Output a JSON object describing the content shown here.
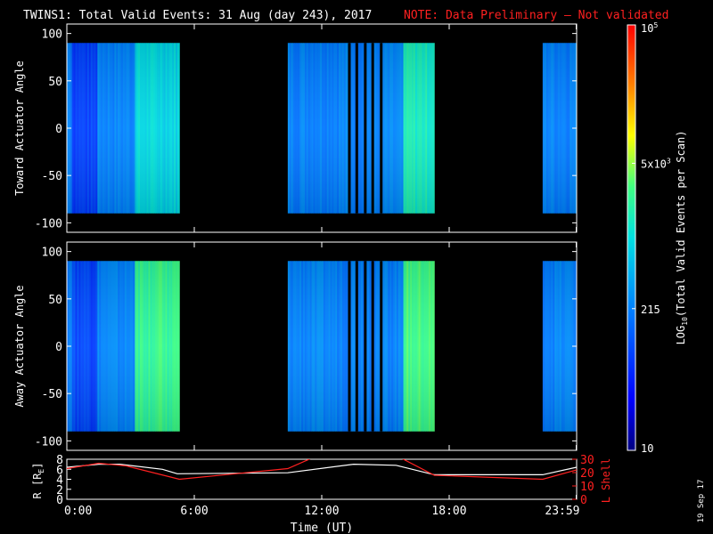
{
  "header": {
    "title": "TWINS1: Total Valid Events: 31 Aug (day 243), 2017",
    "note": "NOTE: Data Preliminary — Not validated"
  },
  "side_date": "19 Sep 17",
  "colors": {
    "note": "#ff2020",
    "line_r": "#ffffff",
    "line_l": "#ff2020"
  },
  "chart_data": [
    {
      "type": "heatmap",
      "ylabel": "Toward Actuator Angle",
      "ylim": [
        -110,
        110
      ],
      "yticks": [
        100,
        50,
        0,
        -50,
        -100
      ],
      "xlim": [
        0,
        24
      ],
      "y_range_data": [
        -90,
        90
      ],
      "data_blocks_hours": [
        [
          0.0,
          5.3
        ],
        [
          10.4,
          17.3
        ],
        [
          22.4,
          24.0
        ]
      ],
      "gap_lines_hours": [
        13.3,
        13.65,
        14.05,
        14.4,
        14.8
      ],
      "base_level": 215,
      "warm_levels": [
        {
          "from": 0.2,
          "to": 1.4,
          "level": 80
        },
        {
          "from": 3.2,
          "to": 5.3,
          "level": 900
        },
        {
          "from": 15.8,
          "to": 17.3,
          "level": 1500
        }
      ]
    },
    {
      "type": "heatmap",
      "ylabel": "Away Actuator Angle",
      "ylim": [
        -110,
        110
      ],
      "yticks": [
        100,
        50,
        0,
        -50,
        -100
      ],
      "xlim": [
        0,
        24
      ],
      "y_range_data": [
        -90,
        90
      ],
      "data_blocks_hours": [
        [
          0.0,
          5.3
        ],
        [
          10.4,
          17.3
        ],
        [
          22.4,
          24.0
        ]
      ],
      "gap_lines_hours": [
        13.3,
        13.65,
        14.05,
        14.4,
        14.8
      ],
      "base_level": 215,
      "warm_levels": [
        {
          "from": 0.2,
          "to": 1.4,
          "level": 90
        },
        {
          "from": 3.2,
          "to": 5.3,
          "level": 2500
        },
        {
          "from": 15.8,
          "to": 17.3,
          "level": 2800
        }
      ]
    },
    {
      "type": "line",
      "ylabel_left": "R [R",
      "ylabel_left_sub": "E",
      "ylabel_left_close": "]",
      "ylabel_right": "L Shell",
      "xlabel": "Time (UT)",
      "xlim": [
        0,
        24
      ],
      "x_ticks": [
        {
          "h": 0,
          "label": "0:00"
        },
        {
          "h": 6,
          "label": "6:00"
        },
        {
          "h": 12,
          "label": "12:00"
        },
        {
          "h": 18,
          "label": "18:00"
        },
        {
          "h": 23.98,
          "label": "23:59"
        }
      ],
      "ylim_left": [
        0,
        8
      ],
      "yticks_left": [
        8,
        6,
        4,
        2,
        0
      ],
      "ylim_right": [
        0,
        30
      ],
      "yticks_right": [
        30,
        20,
        10,
        0
      ],
      "series": [
        {
          "axis": "left",
          "x": [
            0,
            1.5,
            2.5,
            4.5,
            5.2,
            10.4,
            13.5,
            15.5,
            17.3,
            22.4,
            24
          ],
          "y": [
            6.4,
            7.0,
            7.0,
            6.0,
            5.1,
            5.3,
            7.0,
            6.8,
            4.9,
            4.9,
            6.4
          ]
        },
        {
          "axis": "right",
          "x": [
            0,
            1.5,
            2.8,
            5.3,
            10.4,
            11.7,
            15.6,
            17.3,
            22.4,
            24
          ],
          "y": [
            23,
            27,
            25,
            15,
            23,
            32,
            32,
            18,
            15,
            22
          ]
        }
      ]
    }
  ],
  "colorbar": {
    "label_main": "LOG",
    "label_sub": "10",
    "label_rest": "(Total Valid Events per Scan)",
    "ticks": [
      {
        "value": 100000,
        "label": "10",
        "sup": "5"
      },
      {
        "value": 5000,
        "label": "5x10",
        "sup": "3"
      },
      {
        "value": 215,
        "label": "215",
        "sup": ""
      },
      {
        "value": 10,
        "label": "10",
        "sup": ""
      }
    ],
    "range": [
      10,
      100000
    ]
  }
}
